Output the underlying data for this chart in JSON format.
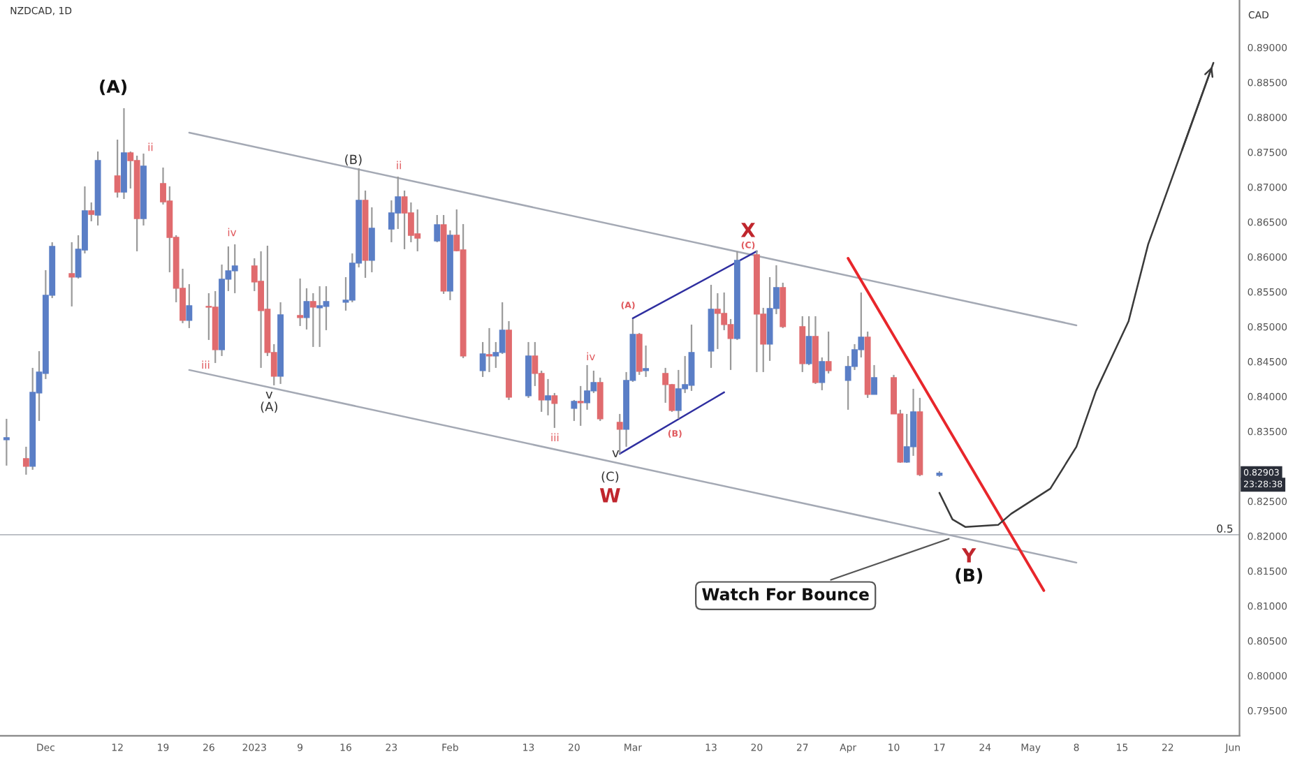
{
  "chart_data": {
    "type": "candlestick",
    "title": "NZDCAD, 1D",
    "ylabel": "CAD",
    "x": [
      "2022-11-25",
      "2022-11-28",
      "2022-11-29",
      "2022-11-30",
      "2022-12-01",
      "2022-12-02",
      "2022-12-05",
      "2022-12-06",
      "2022-12-07",
      "2022-12-08",
      "2022-12-09",
      "2022-12-12",
      "2022-12-13",
      "2022-12-14",
      "2022-12-15",
      "2022-12-16",
      "2022-12-19",
      "2022-12-20",
      "2022-12-21",
      "2022-12-22",
      "2022-12-23",
      "2022-12-26",
      "2022-12-27",
      "2022-12-28",
      "2022-12-29",
      "2022-12-30",
      "2023-01-02",
      "2023-01-03",
      "2023-01-04",
      "2023-01-05",
      "2023-01-06",
      "2023-01-09",
      "2023-01-10",
      "2023-01-11",
      "2023-01-12",
      "2023-01-13",
      "2023-01-16",
      "2023-01-17",
      "2023-01-18",
      "2023-01-19",
      "2023-01-20",
      "2023-01-23",
      "2023-01-24",
      "2023-01-25",
      "2023-01-26",
      "2023-01-27",
      "2023-01-30",
      "2023-01-31",
      "2023-02-01",
      "2023-02-02",
      "2023-02-03",
      "2023-02-06",
      "2023-02-07",
      "2023-02-08",
      "2023-02-09",
      "2023-02-10",
      "2023-02-13",
      "2023-02-14",
      "2023-02-15",
      "2023-02-16",
      "2023-02-17",
      "2023-02-20",
      "2023-02-21",
      "2023-02-22",
      "2023-02-23",
      "2023-02-24",
      "2023-02-27",
      "2023-02-28",
      "2023-03-01",
      "2023-03-02",
      "2023-03-03",
      "2023-03-06",
      "2023-03-07",
      "2023-03-08",
      "2023-03-09",
      "2023-03-10",
      "2023-03-13",
      "2023-03-14",
      "2023-03-15",
      "2023-03-16",
      "2023-03-17",
      "2023-03-20",
      "2023-03-21",
      "2023-03-22",
      "2023-03-23",
      "2023-03-24",
      "2023-03-27",
      "2023-03-28",
      "2023-03-29",
      "2023-03-30",
      "2023-03-31",
      "2023-04-03",
      "2023-04-04",
      "2023-04-05",
      "2023-04-06",
      "2023-04-07",
      "2023-04-10",
      "2023-04-11",
      "2023-04-12",
      "2023-04-13",
      "2023-04-14",
      "2023-04-17"
    ],
    "ohlc": [
      [
        0.8338,
        0.8368,
        0.8301,
        0.8341
      ],
      [
        0.8311,
        0.8328,
        0.8288,
        0.83
      ],
      [
        0.83,
        0.8441,
        0.8295,
        0.8406
      ],
      [
        0.8405,
        0.8465,
        0.8365,
        0.8435
      ],
      [
        0.8433,
        0.8581,
        0.8425,
        0.8545
      ],
      [
        0.8545,
        0.8621,
        0.8541,
        0.8615
      ],
      [
        0.8576,
        0.8621,
        0.8529,
        0.8571
      ],
      [
        0.8571,
        0.8631,
        0.8569,
        0.8611
      ],
      [
        0.861,
        0.8701,
        0.8605,
        0.8666
      ],
      [
        0.8666,
        0.8678,
        0.8651,
        0.8661
      ],
      [
        0.866,
        0.8751,
        0.8645,
        0.8738
      ],
      [
        0.8716,
        0.8768,
        0.8685,
        0.8693
      ],
      [
        0.8693,
        0.8813,
        0.8683,
        0.8749
      ],
      [
        0.8749,
        0.8751,
        0.8698,
        0.8738
      ],
      [
        0.8738,
        0.8745,
        0.8608,
        0.8655
      ],
      [
        0.8655,
        0.8748,
        0.8645,
        0.873
      ],
      [
        0.8705,
        0.8728,
        0.8675,
        0.8679
      ],
      [
        0.868,
        0.8701,
        0.8578,
        0.8628
      ],
      [
        0.8628,
        0.8631,
        0.8535,
        0.8555
      ],
      [
        0.8555,
        0.8583,
        0.8505,
        0.8509
      ],
      [
        0.8509,
        0.8561,
        0.8498,
        0.853
      ],
      [
        0.8529,
        0.8548,
        0.8481,
        0.8528
      ],
      [
        0.8528,
        0.8551,
        0.8448,
        0.8467
      ],
      [
        0.8467,
        0.8589,
        0.8458,
        0.8568
      ],
      [
        0.8568,
        0.8615,
        0.8551,
        0.858
      ],
      [
        0.858,
        0.8618,
        0.8548,
        0.8587
      ],
      [
        0.8587,
        0.8598,
        0.8551,
        0.8564
      ],
      [
        0.8565,
        0.8608,
        0.8441,
        0.8523
      ],
      [
        0.8525,
        0.8616,
        0.8458,
        0.8463
      ],
      [
        0.8463,
        0.8475,
        0.8416,
        0.8429
      ],
      [
        0.8429,
        0.8535,
        0.8418,
        0.8517
      ],
      [
        0.8516,
        0.8569,
        0.8501,
        0.8513
      ],
      [
        0.8513,
        0.8555,
        0.8496,
        0.8536
      ],
      [
        0.8536,
        0.8548,
        0.8471,
        0.8528
      ],
      [
        0.8527,
        0.8558,
        0.8471,
        0.853
      ],
      [
        0.8529,
        0.8558,
        0.8495,
        0.8536
      ],
      [
        0.8535,
        0.8571,
        0.8523,
        0.8538
      ],
      [
        0.8538,
        0.8605,
        0.8535,
        0.8591
      ],
      [
        0.8591,
        0.8727,
        0.8585,
        0.8681
      ],
      [
        0.8681,
        0.8695,
        0.857,
        0.8595
      ],
      [
        0.8595,
        0.8671,
        0.8578,
        0.8641
      ],
      [
        0.864,
        0.8681,
        0.8621,
        0.8663
      ],
      [
        0.8663,
        0.8715,
        0.864,
        0.8686
      ],
      [
        0.8686,
        0.8695,
        0.8611,
        0.8663
      ],
      [
        0.8663,
        0.8678,
        0.8621,
        0.8631
      ],
      [
        0.8633,
        0.8668,
        0.8608,
        0.8627
      ],
      [
        0.8623,
        0.866,
        0.8621,
        0.8646
      ],
      [
        0.8646,
        0.866,
        0.8547,
        0.8551
      ],
      [
        0.8551,
        0.8638,
        0.8538,
        0.8631
      ],
      [
        0.8631,
        0.8668,
        0.8608,
        0.8609
      ],
      [
        0.861,
        0.8647,
        0.8455,
        0.8458
      ],
      [
        0.8437,
        0.8478,
        0.8428,
        0.8461
      ],
      [
        0.846,
        0.8498,
        0.8435,
        0.8458
      ],
      [
        0.8458,
        0.8478,
        0.8441,
        0.8463
      ],
      [
        0.8463,
        0.8535,
        0.8461,
        0.8495
      ],
      [
        0.8495,
        0.8508,
        0.8395,
        0.8399
      ],
      [
        0.8401,
        0.8478,
        0.8398,
        0.8458
      ],
      [
        0.8458,
        0.8478,
        0.8415,
        0.8433
      ],
      [
        0.8433,
        0.8437,
        0.8378,
        0.8395
      ],
      [
        0.8395,
        0.8425,
        0.8373,
        0.8401
      ],
      [
        0.8401,
        0.8405,
        0.8355,
        0.839
      ],
      [
        0.8383,
        0.8395,
        0.8365,
        0.8393
      ],
      [
        0.8393,
        0.8415,
        0.8358,
        0.8391
      ],
      [
        0.8391,
        0.8445,
        0.8381,
        0.8408
      ],
      [
        0.8408,
        0.8437,
        0.8405,
        0.842
      ],
      [
        0.842,
        0.8427,
        0.8365,
        0.8368
      ],
      [
        0.8363,
        0.8375,
        0.8318,
        0.8353
      ],
      [
        0.8353,
        0.8435,
        0.8328,
        0.8423
      ],
      [
        0.8423,
        0.8511,
        0.8421,
        0.8489
      ],
      [
        0.8489,
        0.8491,
        0.8431,
        0.8436
      ],
      [
        0.8437,
        0.8473,
        0.8428,
        0.844
      ],
      [
        0.8433,
        0.8441,
        0.8391,
        0.8417
      ],
      [
        0.8417,
        0.8418,
        0.8378,
        0.838
      ],
      [
        0.838,
        0.8438,
        0.8368,
        0.8411
      ],
      [
        0.8411,
        0.8458,
        0.8405,
        0.8417
      ],
      [
        0.8416,
        0.8503,
        0.8408,
        0.8463
      ],
      [
        0.8465,
        0.856,
        0.8441,
        0.8525
      ],
      [
        0.8525,
        0.8548,
        0.8468,
        0.8519
      ],
      [
        0.8519,
        0.8549,
        0.8495,
        0.8503
      ],
      [
        0.8503,
        0.8511,
        0.8438,
        0.8483
      ],
      [
        0.8483,
        0.8608,
        0.8481,
        0.8595
      ],
      [
        0.8603,
        0.8609,
        0.8435,
        0.8518
      ],
      [
        0.8518,
        0.8527,
        0.8435,
        0.8475
      ],
      [
        0.8475,
        0.8571,
        0.8451,
        0.8526
      ],
      [
        0.8526,
        0.8588,
        0.8518,
        0.8556
      ],
      [
        0.8556,
        0.8563,
        0.8498,
        0.85
      ],
      [
        0.85,
        0.8515,
        0.8435,
        0.8447
      ],
      [
        0.8447,
        0.8515,
        0.8445,
        0.8486
      ],
      [
        0.8486,
        0.8515,
        0.8418,
        0.842
      ],
      [
        0.842,
        0.8456,
        0.8409,
        0.845
      ],
      [
        0.845,
        0.8493,
        0.8433,
        0.8437
      ],
      [
        0.8423,
        0.8458,
        0.8381,
        0.8443
      ],
      [
        0.8443,
        0.8475,
        0.8438,
        0.8467
      ],
      [
        0.8467,
        0.8549,
        0.8456,
        0.8485
      ],
      [
        0.8485,
        0.8493,
        0.8398,
        0.8403
      ],
      [
        0.8403,
        0.8445,
        0.8403,
        0.8427
      ],
      [
        0.8427,
        0.8431,
        0.8375,
        0.8375
      ],
      [
        0.8375,
        0.8381,
        0.8305,
        0.8306
      ],
      [
        0.8306,
        0.8375,
        0.8305,
        0.8328
      ],
      [
        0.8328,
        0.8411,
        0.8315,
        0.8378
      ],
      [
        0.8378,
        0.8398,
        0.8286,
        0.8288
      ],
      [
        0.8287,
        0.8293,
        0.8285,
        0.82903
      ]
    ],
    "colors": [
      "#5a7ec6",
      "#e06b6e",
      "#5a7ec6",
      "#5a7ec6",
      "#5a7ec6",
      "#5a7ec6",
      "#e06b6e",
      "#5a7ec6",
      "#5a7ec6",
      "#e06b6e",
      "#5a7ec6",
      "#e06b6e",
      "#5a7ec6",
      "#e06b6e",
      "#e06b6e",
      "#5a7ec6",
      "#e06b6e",
      "#e06b6e",
      "#e06b6e",
      "#e06b6e",
      "#5a7ec6",
      "#e06b6e",
      "#e06b6e",
      "#5a7ec6",
      "#5a7ec6",
      "#5a7ec6",
      "#e06b6e",
      "#e06b6e",
      "#e06b6e",
      "#e06b6e",
      "#5a7ec6",
      "#e06b6e",
      "#5a7ec6",
      "#e06b6e",
      "#5a7ec6",
      "#5a7ec6",
      "#5a7ec6",
      "#5a7ec6",
      "#5a7ec6",
      "#e06b6e",
      "#5a7ec6",
      "#5a7ec6",
      "#5a7ec6",
      "#e06b6e",
      "#e06b6e",
      "#e06b6e",
      "#5a7ec6",
      "#e06b6e",
      "#5a7ec6",
      "#e06b6e",
      "#e06b6e",
      "#5a7ec6",
      "#e06b6e",
      "#5a7ec6",
      "#5a7ec6",
      "#e06b6e",
      "#5a7ec6",
      "#e06b6e",
      "#e06b6e",
      "#5a7ec6",
      "#e06b6e",
      "#5a7ec6",
      "#e06b6e",
      "#5a7ec6",
      "#5a7ec6",
      "#e06b6e",
      "#e06b6e",
      "#5a7ec6",
      "#5a7ec6",
      "#e06b6e",
      "#5a7ec6",
      "#e06b6e",
      "#e06b6e",
      "#5a7ec6",
      "#5a7ec6",
      "#5a7ec6",
      "#5a7ec6",
      "#e06b6e",
      "#e06b6e",
      "#e06b6e",
      "#5a7ec6",
      "#e06b6e",
      "#e06b6e",
      "#5a7ec6",
      "#5a7ec6",
      "#e06b6e",
      "#e06b6e",
      "#5a7ec6",
      "#e06b6e",
      "#5a7ec6",
      "#e06b6e",
      "#5a7ec6",
      "#5a7ec6",
      "#5a7ec6",
      "#e06b6e",
      "#5a7ec6",
      "#e06b6e",
      "#e06b6e",
      "#5a7ec6",
      "#5a7ec6",
      "#e06b6e",
      "#5a7ec6"
    ],
    "series": [
      {
        "type": "line",
        "color": "#a4a9b4",
        "x": [
          "2022-12-23",
          "2023-05-08"
        ],
        "values": [
          0.8778,
          0.8502
        ]
      },
      {
        "type": "line",
        "color": "#a4a9b4",
        "x": [
          "2022-12-23",
          "2023-05-08"
        ],
        "values": [
          0.8438,
          0.8162
        ]
      },
      {
        "type": "line",
        "color": "#2f2fa0",
        "x": [
          "2023-03-01",
          "2023-03-20"
        ],
        "values": [
          0.8512,
          0.8608
        ]
      },
      {
        "type": "line",
        "color": "#2f2fa0",
        "x": [
          "2023-02-27",
          "2023-03-15"
        ],
        "values": [
          0.8318,
          0.8406
        ]
      },
      {
        "type": "line",
        "color": "#e8262b",
        "x": [
          "2023-04-03",
          "2023-05-03"
        ],
        "values": [
          0.8598,
          0.8122
        ]
      },
      {
        "type": "line",
        "color": "#3a3a3a",
        "x": [
          "2023-04-17",
          "2023-04-19",
          "2023-04-21",
          "2023-04-26",
          "2023-04-28",
          "2023-05-04",
          "2023-05-08",
          "2023-05-11",
          "2023-05-16",
          "2023-05-19",
          "2023-05-24",
          "2023-05-29"
        ],
        "values": [
          0.8262,
          0.8224,
          0.8213,
          0.8216,
          0.8232,
          0.8268,
          0.8328,
          0.8408,
          0.8508,
          0.8618,
          0.8748,
          0.8878
        ]
      }
    ],
    "ref_lines": [
      {
        "axis": "y",
        "value": 0.8202,
        "color": "#b5b8bf"
      }
    ],
    "annotations": [
      "(A)",
      "ii",
      "iv",
      "iii",
      "v",
      "(A)",
      "(B)",
      "ii",
      "iii",
      "iv",
      "v",
      "(C)",
      "W",
      "(A)",
      "(B)",
      "X",
      "(C)",
      "Y",
      "(B)",
      {
        "text": "Watch For Bounce",
        "x": "2023-04-19",
        "y": 0.8198
      },
      "0.82903",
      "23:28:38",
      "0.5"
    ],
    "xlim": [
      "2022-11-24",
      "2023-06-02"
    ],
    "xticks": [
      {
        "value": "2022-12-01",
        "label": "Dec"
      },
      {
        "value": "2022-12-12",
        "label": "12"
      },
      {
        "value": "2022-12-19",
        "label": "19"
      },
      {
        "value": "2022-12-26",
        "label": "26"
      },
      {
        "value": "2023-01-02",
        "label": "2023"
      },
      {
        "value": "2023-01-09",
        "label": "9"
      },
      {
        "value": "2023-01-16",
        "label": "16"
      },
      {
        "value": "2023-01-23",
        "label": "23"
      },
      {
        "value": "2023-02-01",
        "label": "Feb"
      },
      {
        "value": "2023-02-13",
        "label": "13"
      },
      {
        "value": "2023-02-20",
        "label": "20"
      },
      {
        "value": "2023-03-01",
        "label": "Mar"
      },
      {
        "value": "2023-03-13",
        "label": "13"
      },
      {
        "value": "2023-03-20",
        "label": "20"
      },
      {
        "value": "2023-03-27",
        "label": "27"
      },
      {
        "value": "2023-04-03",
        "label": "Apr"
      },
      {
        "value": "2023-04-10",
        "label": "10"
      },
      {
        "value": "2023-04-17",
        "label": "17"
      },
      {
        "value": "2023-04-24",
        "label": "24"
      },
      {
        "value": "2023-05-01",
        "label": "May"
      },
      {
        "value": "2023-05-08",
        "label": "8"
      },
      {
        "value": "2023-05-15",
        "label": "15"
      },
      {
        "value": "2023-05-22",
        "label": "22"
      },
      {
        "value": "2023-06-01",
        "label": "Jun"
      }
    ],
    "ylim": [
      0.7914,
      0.8968
    ],
    "yticks": [
      {
        "value": 0.795,
        "label": "0.79500"
      },
      {
        "value": 0.8,
        "label": "0.80000"
      },
      {
        "value": 0.805,
        "label": "0.80500"
      },
      {
        "value": 0.81,
        "label": "0.81000"
      },
      {
        "value": 0.815,
        "label": "0.81500"
      },
      {
        "value": 0.82,
        "label": "0.82000"
      },
      {
        "value": 0.825,
        "label": "0.82500"
      },
      {
        "value": 0.835,
        "label": "0.83500"
      },
      {
        "value": 0.84,
        "label": "0.84000"
      },
      {
        "value": 0.845,
        "label": "0.84500"
      },
      {
        "value": 0.85,
        "label": "0.85000"
      },
      {
        "value": 0.855,
        "label": "0.85500"
      },
      {
        "value": 0.86,
        "label": "0.86000"
      },
      {
        "value": 0.865,
        "label": "0.86500"
      },
      {
        "value": 0.87,
        "label": "0.87000"
      },
      {
        "value": 0.875,
        "label": "0.87500"
      },
      {
        "value": 0.88,
        "label": "0.88000"
      },
      {
        "value": 0.885,
        "label": "0.88500"
      },
      {
        "value": 0.89,
        "label": "0.89000"
      }
    ]
  }
}
